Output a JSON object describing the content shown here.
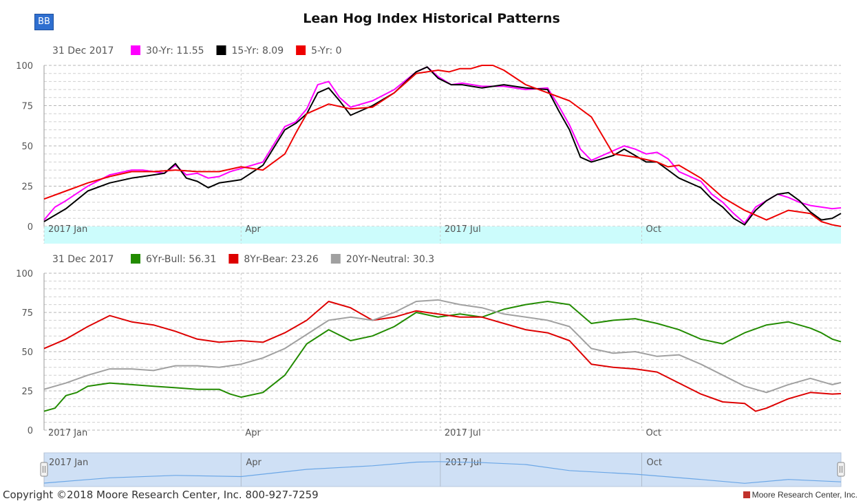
{
  "header": {
    "badge": "BB",
    "title": "Lean Hog Index Historical Patterns"
  },
  "footer": {
    "copyright": "Copyright ©2018 Moore Research Center, Inc. 800-927-7259",
    "brand": "Moore Research Center, Inc."
  },
  "chart_data": [
    {
      "type": "line",
      "title": "Lean Hog Index Historical Patterns",
      "date_label": "31 Dec 2017",
      "x_ticks": [
        "2017 Jan",
        "Apr",
        "2017 Jul",
        "Oct"
      ],
      "x_tick_days": [
        0,
        90,
        181,
        273
      ],
      "y_ticks": [
        0,
        25,
        50,
        75,
        100
      ],
      "ylim": [
        0,
        100
      ],
      "grid": true,
      "legend_position": "top-left",
      "series": [
        {
          "name": "30-Yr",
          "last_value": "11.55",
          "color": "#ff00ff",
          "x": [
            0,
            5,
            10,
            20,
            30,
            40,
            45,
            55,
            60,
            65,
            70,
            75,
            80,
            85,
            90,
            100,
            110,
            115,
            120,
            125,
            130,
            135,
            140,
            150,
            160,
            170,
            175,
            180,
            186,
            191,
            200,
            210,
            220,
            230,
            235,
            240,
            245,
            250,
            255,
            260,
            265,
            270,
            275,
            280,
            285,
            290,
            300,
            305,
            310,
            315,
            320,
            325,
            330,
            335,
            340,
            345,
            350,
            355,
            360,
            364
          ],
          "y": [
            4,
            12,
            16,
            25,
            32,
            35,
            35,
            33,
            38,
            32,
            33,
            30,
            31,
            34,
            36,
            40,
            62,
            65,
            73,
            88,
            90,
            80,
            74,
            78,
            85,
            96,
            99,
            93,
            88,
            89,
            87,
            87,
            85,
            86,
            75,
            63,
            48,
            41,
            44,
            47,
            50,
            48,
            45,
            46,
            42,
            34,
            28,
            20,
            15,
            8,
            2,
            12,
            16,
            20,
            18,
            15,
            13,
            12,
            11,
            11.55
          ]
        },
        {
          "name": "15-Yr",
          "last_value": "8.09",
          "color": "#000000",
          "x": [
            0,
            5,
            10,
            20,
            30,
            40,
            45,
            55,
            60,
            65,
            70,
            75,
            80,
            85,
            90,
            100,
            110,
            115,
            120,
            125,
            130,
            135,
            140,
            150,
            160,
            170,
            175,
            180,
            186,
            191,
            200,
            210,
            220,
            230,
            235,
            240,
            245,
            250,
            255,
            260,
            265,
            270,
            275,
            280,
            285,
            290,
            300,
            305,
            310,
            315,
            320,
            325,
            330,
            335,
            340,
            345,
            350,
            355,
            360,
            364
          ],
          "y": [
            3,
            7,
            11,
            22,
            27,
            30,
            31,
            33,
            39,
            30,
            28,
            24,
            27,
            28,
            29,
            38,
            60,
            64,
            70,
            83,
            86,
            78,
            69,
            75,
            83,
            96,
            99,
            92,
            88,
            88,
            86,
            88,
            86,
            85,
            72,
            60,
            43,
            40,
            42,
            44,
            48,
            44,
            40,
            40,
            35,
            30,
            24,
            17,
            12,
            5,
            1,
            10,
            16,
            20,
            21,
            16,
            9,
            4,
            5,
            8.09
          ]
        },
        {
          "name": "5-Yr",
          "last_value": "0",
          "color": "#ee0000",
          "x": [
            0,
            10,
            20,
            30,
            40,
            50,
            60,
            70,
            80,
            90,
            100,
            110,
            115,
            120,
            130,
            140,
            150,
            160,
            170,
            180,
            185,
            190,
            195,
            200,
            205,
            210,
            220,
            230,
            240,
            250,
            260,
            270,
            280,
            285,
            290,
            300,
            310,
            320,
            330,
            340,
            350,
            355,
            360,
            364
          ],
          "y": [
            17,
            22,
            27,
            31,
            34,
            34,
            35,
            34,
            34,
            37,
            35,
            45,
            58,
            70,
            76,
            73,
            74,
            83,
            95,
            97,
            96,
            98,
            98,
            100,
            100,
            97,
            88,
            83,
            78,
            68,
            45,
            43,
            40,
            37,
            38,
            30,
            18,
            10,
            4,
            10,
            8,
            3,
            1,
            0
          ]
        }
      ]
    },
    {
      "type": "line",
      "date_label": "31 Dec 2017",
      "x_ticks": [
        "2017 Jan",
        "Apr",
        "2017 Jul",
        "Oct"
      ],
      "x_tick_days": [
        0,
        90,
        181,
        273
      ],
      "y_ticks": [
        0,
        25,
        50,
        75,
        100
      ],
      "ylim": [
        0,
        100
      ],
      "grid": true,
      "legend_position": "top-left",
      "series": [
        {
          "name": "6Yr-Bull",
          "last_value": "56.31",
          "color": "#228b00",
          "x": [
            0,
            5,
            10,
            15,
            20,
            30,
            40,
            50,
            60,
            70,
            80,
            85,
            90,
            100,
            110,
            120,
            130,
            140,
            150,
            160,
            170,
            180,
            190,
            200,
            210,
            220,
            230,
            240,
            250,
            260,
            270,
            280,
            290,
            300,
            310,
            320,
            330,
            340,
            350,
            355,
            360,
            364
          ],
          "y": [
            12,
            14,
            22,
            24,
            28,
            30,
            29,
            28,
            27,
            26,
            26,
            23,
            21,
            24,
            35,
            55,
            64,
            57,
            60,
            66,
            75,
            72,
            74,
            72,
            77,
            80,
            82,
            80,
            68,
            70,
            71,
            68,
            64,
            58,
            55,
            62,
            67,
            69,
            65,
            62,
            58,
            56.31
          ]
        },
        {
          "name": "8Yr-Bear",
          "last_value": "23.26",
          "color": "#dd0000",
          "x": [
            0,
            10,
            20,
            30,
            40,
            50,
            60,
            70,
            80,
            90,
            100,
            110,
            120,
            130,
            140,
            150,
            160,
            170,
            180,
            190,
            200,
            210,
            220,
            230,
            240,
            250,
            260,
            270,
            280,
            290,
            300,
            310,
            320,
            325,
            330,
            340,
            350,
            360,
            364
          ],
          "y": [
            52,
            58,
            66,
            73,
            69,
            67,
            63,
            58,
            56,
            57,
            56,
            62,
            70,
            82,
            78,
            70,
            72,
            76,
            74,
            72,
            72,
            68,
            64,
            62,
            57,
            42,
            40,
            39,
            37,
            30,
            23,
            18,
            17,
            12,
            14,
            20,
            24,
            23,
            23.26
          ]
        },
        {
          "name": "20Yr-Neutral",
          "last_value": "30.3",
          "color": "#a0a0a0",
          "x": [
            0,
            10,
            20,
            30,
            40,
            50,
            60,
            70,
            80,
            90,
            100,
            110,
            120,
            130,
            140,
            150,
            160,
            170,
            180,
            190,
            200,
            210,
            220,
            230,
            240,
            250,
            260,
            270,
            280,
            290,
            300,
            310,
            320,
            330,
            340,
            350,
            360,
            364
          ],
          "y": [
            26,
            30,
            35,
            39,
            39,
            38,
            41,
            41,
            40,
            42,
            46,
            52,
            61,
            70,
            72,
            70,
            75,
            82,
            83,
            80,
            78,
            74,
            72,
            70,
            66,
            52,
            49,
            50,
            47,
            48,
            42,
            35,
            28,
            24,
            29,
            33,
            29,
            30.3
          ]
        }
      ]
    }
  ],
  "navigator": {
    "x_ticks": [
      "2017 Jan",
      "Apr",
      "2017 Jul",
      "Oct"
    ],
    "x": [
      0,
      30,
      60,
      90,
      120,
      150,
      170,
      180,
      200,
      220,
      240,
      270,
      300,
      320,
      340,
      364
    ],
    "y": [
      3,
      25,
      35,
      30,
      60,
      75,
      90,
      92,
      88,
      80,
      55,
      40,
      18,
      2,
      18,
      8
    ]
  }
}
